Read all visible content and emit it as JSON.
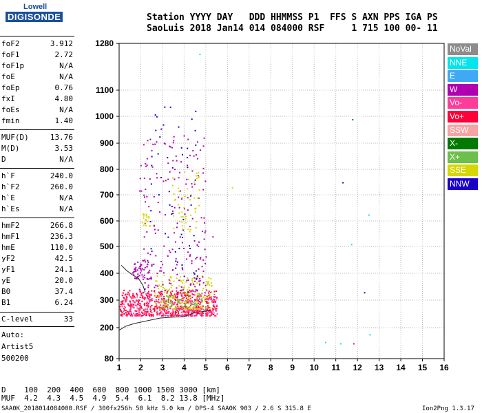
{
  "logo": {
    "top": "Lowell",
    "bottom": "DIGISONDE"
  },
  "header": {
    "line1": "Station YYYY DAY   DDD HHMMSS P1  FFS S AXN PPS IGA PS",
    "line2": "SaoLuis 2018 Jan14 014 084000 RSF     1 715 100 00- 11"
  },
  "parameters": [
    {
      "name": "foF2",
      "value": "3.912"
    },
    {
      "name": "foF1",
      "value": "2.72"
    },
    {
      "name": "foF1p",
      "value": "N/A"
    },
    {
      "name": "foE",
      "value": "N/A"
    },
    {
      "name": "foEp",
      "value": "0.76"
    },
    {
      "name": "fxI",
      "value": "4.80"
    },
    {
      "name": "foEs",
      "value": "N/A"
    },
    {
      "name": "fmin",
      "value": "1.40"
    },
    {
      "name": "MUF(D)",
      "value": "13.76"
    },
    {
      "name": "M(D)",
      "value": "3.53"
    },
    {
      "name": "D",
      "value": "N/A"
    },
    {
      "name": "h`F",
      "value": "240.0"
    },
    {
      "name": "h`F2",
      "value": "260.0"
    },
    {
      "name": "h`E",
      "value": "N/A"
    },
    {
      "name": "h`Es",
      "value": "N/A"
    },
    {
      "name": "hmF2",
      "value": "266.8"
    },
    {
      "name": "hmF1",
      "value": "236.3"
    },
    {
      "name": "hmE",
      "value": "110.0"
    },
    {
      "name": "yF2",
      "value": "42.5"
    },
    {
      "name": "yF1",
      "value": "24.1"
    },
    {
      "name": "yE",
      "value": "20.0"
    },
    {
      "name": "B0",
      "value": "37.4"
    },
    {
      "name": "B1",
      "value": "6.24"
    },
    {
      "name": "C-level",
      "value": "33"
    }
  ],
  "auto": [
    "Auto:",
    "Artist5",
    "500200"
  ],
  "legend": [
    {
      "label": "NoVal",
      "color": "#8c8c8c"
    },
    {
      "label": "NNE",
      "color": "#00e5ee"
    },
    {
      "label": "E",
      "color": "#3fa9f5"
    },
    {
      "label": "W",
      "color": "#b000b0"
    },
    {
      "label": "Vo-",
      "color": "#ff3c9a"
    },
    {
      "label": "Vo+",
      "color": "#ff0038"
    },
    {
      "label": "SSW",
      "color": "#f5a3a3"
    },
    {
      "label": "X-",
      "color": "#007a00"
    },
    {
      "label": "X+",
      "color": "#6cbf4a"
    },
    {
      "label": "SSE",
      "color": "#d6d600"
    },
    {
      "label": "NNW",
      "color": "#1a00c8"
    }
  ],
  "muf_table": {
    "row1": "D    100  200  400  600  800 1000 1500 3000 [km]",
    "row2": "MUF  4.2  4.3  4.5  4.9  5.4  6.1  8.2 13.8 [MHz]"
  },
  "footer": {
    "left": "SAA0K_2018014084000.RSF / 300fx256h 50 kHz 5.0 km / DPS-4 SAA0K 903 / 2.6 S 315.8 E",
    "right": "Ion2Png 1.3.17"
  },
  "chart_data": {
    "type": "scatter",
    "xlabel": "",
    "ylabel": "",
    "xlim": [
      1,
      16
    ],
    "ylim_labels": [
      80,
      200,
      300,
      400,
      500,
      600,
      700,
      800,
      900,
      1000,
      1100,
      1280
    ],
    "x_ticks": [
      1,
      2,
      3,
      4,
      5,
      6,
      7,
      8,
      9,
      10,
      11,
      12,
      13,
      14,
      15,
      16
    ],
    "y_ticks": [
      80,
      200,
      300,
      400,
      500,
      600,
      700,
      800,
      900,
      1000,
      1100,
      1280
    ],
    "grid": true,
    "y_scale": "nonlinear (ionogram virtual height)",
    "clusters": [
      {
        "series": "Vo+",
        "x_range": [
          1.0,
          5.5
        ],
        "y_range": [
          245,
          340
        ],
        "density": 520
      },
      {
        "series": "Vo-",
        "x_range": [
          1.1,
          5.5
        ],
        "y_range": [
          245,
          330
        ],
        "density": 260
      },
      {
        "series": "SSE",
        "x_range": [
          2.6,
          5.3
        ],
        "y_range": [
          270,
          395
        ],
        "density": 160
      },
      {
        "series": "X+",
        "x_range": [
          3.0,
          5.0
        ],
        "y_range": [
          270,
          330
        ],
        "density": 60
      },
      {
        "series": "W",
        "x_range": [
          1.6,
          2.5
        ],
        "y_range": [
          380,
          450
        ],
        "density": 60
      },
      {
        "series": "W",
        "x_range": [
          1.9,
          5.0
        ],
        "y_range": [
          330,
          930
        ],
        "density": 200
      },
      {
        "series": "SSE",
        "x_range": [
          3.4,
          4.7
        ],
        "y_range": [
          560,
          800
        ],
        "density": 50
      },
      {
        "series": "NNW",
        "x_range": [
          2.4,
          4.6
        ],
        "y_range": [
          380,
          1080
        ],
        "density": 60
      },
      {
        "series": "SSE",
        "x_range": [
          2.0,
          2.4
        ],
        "y_range": [
          580,
          630
        ],
        "density": 20
      }
    ],
    "isolated_points": [
      {
        "series": "NNE",
        "x": 4.7,
        "y": 1240
      },
      {
        "series": "X-",
        "x": 11.75,
        "y": 990
      },
      {
        "series": "NNW",
        "x": 11.3,
        "y": 750
      },
      {
        "series": "NNE",
        "x": 12.5,
        "y": 625
      },
      {
        "series": "NNE",
        "x": 11.7,
        "y": 510
      },
      {
        "series": "NNW",
        "x": 12.3,
        "y": 330
      },
      {
        "series": "NNE",
        "x": 12.55,
        "y": 175
      },
      {
        "series": "NNE",
        "x": 10.5,
        "y": 145
      },
      {
        "series": "NNE",
        "x": 11.2,
        "y": 140
      },
      {
        "series": "Vo+",
        "x": 11.8,
        "y": 140
      },
      {
        "series": "SSE",
        "x": 6.2,
        "y": 730
      },
      {
        "series": "W",
        "x": 5.3,
        "y": 540
      }
    ],
    "trace_lines": [
      {
        "name": "profile",
        "points": [
          [
            1.0,
            190
          ],
          [
            1.3,
            205
          ],
          [
            1.7,
            215
          ],
          [
            2.3,
            225
          ],
          [
            2.9,
            235
          ],
          [
            3.5,
            238
          ],
          [
            4.0,
            240
          ],
          [
            4.5,
            255
          ],
          [
            5.2,
            262
          ]
        ]
      },
      {
        "name": "trace",
        "points": [
          [
            1.1,
            430
          ],
          [
            1.35,
            410
          ],
          [
            1.6,
            395
          ],
          [
            1.9,
            380
          ],
          [
            2.1,
            355
          ],
          [
            2.2,
            330
          ]
        ]
      }
    ]
  }
}
